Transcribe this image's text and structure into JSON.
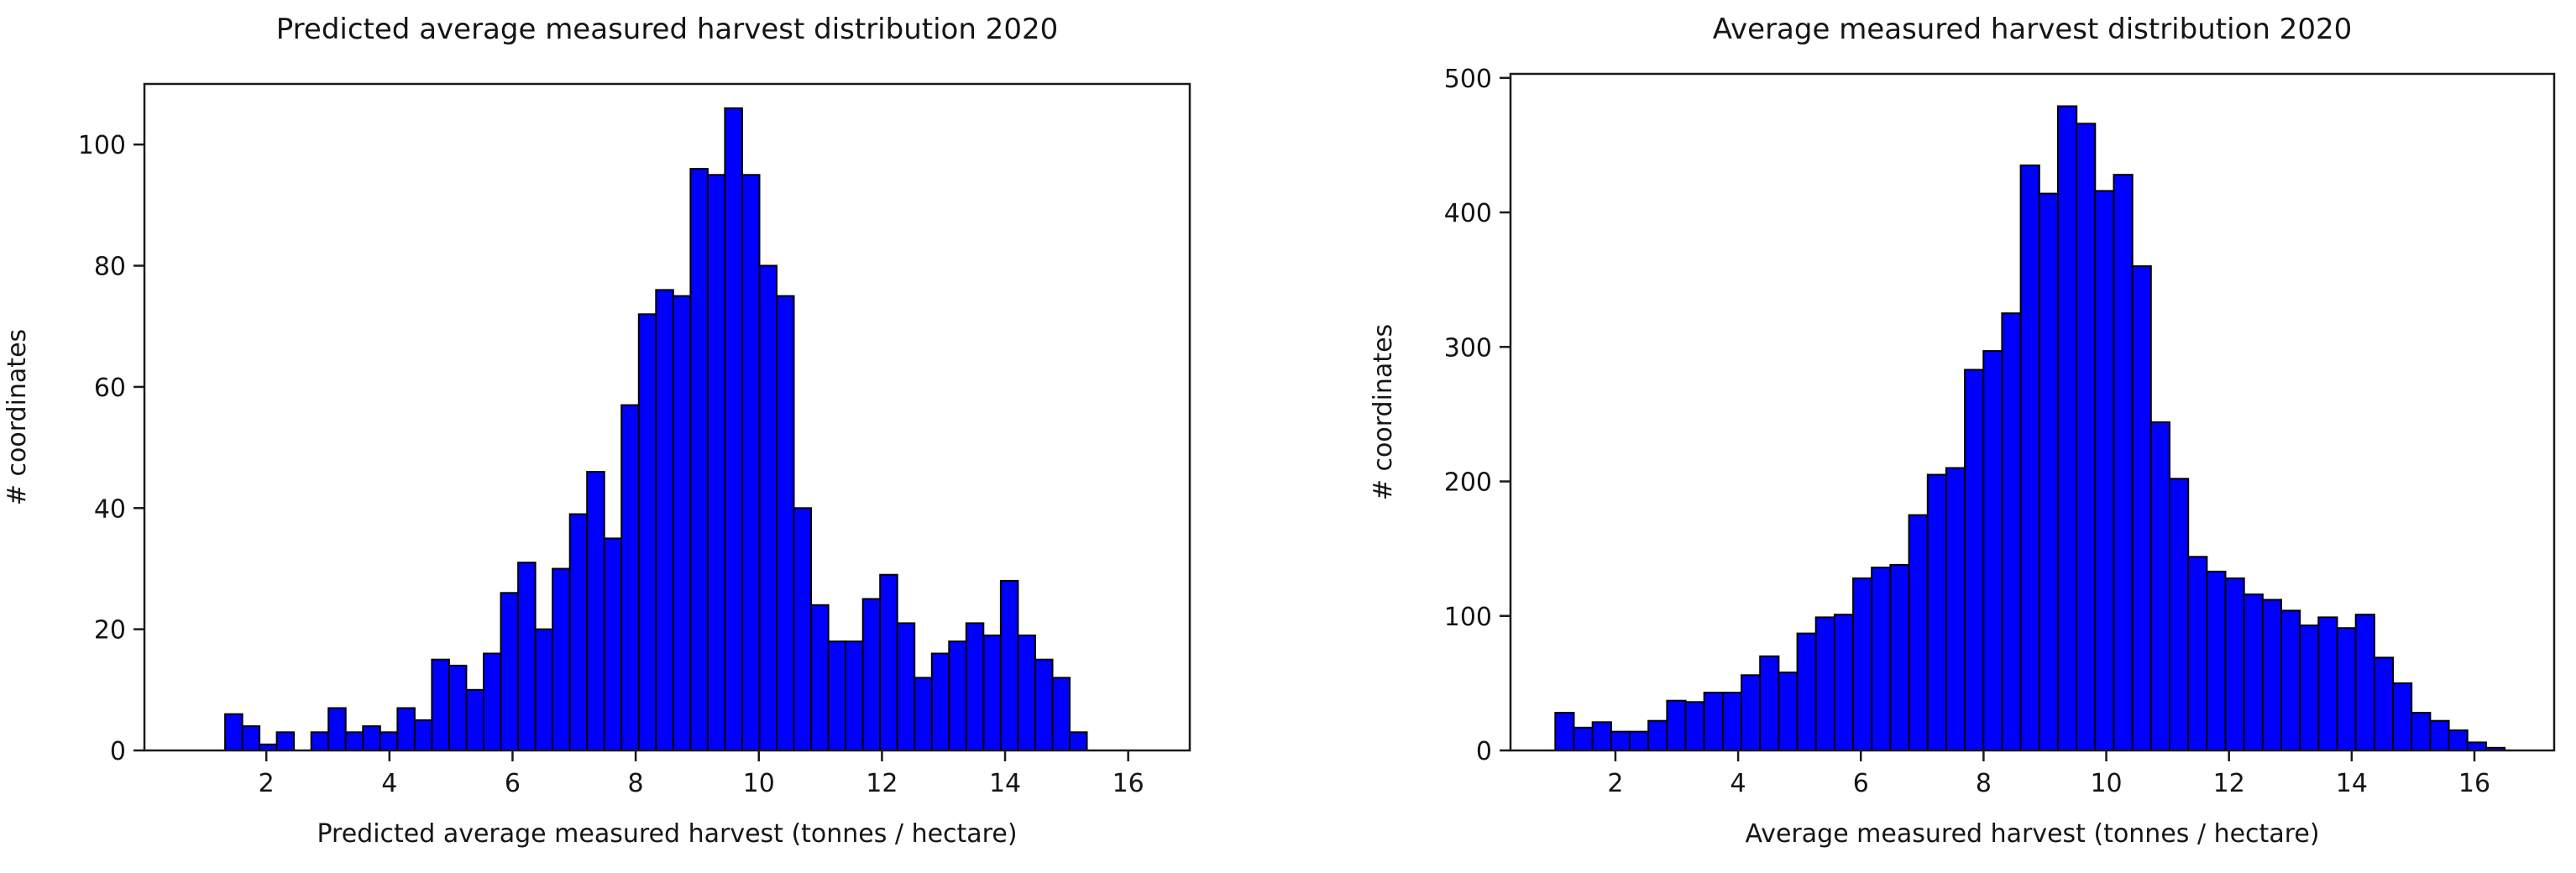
{
  "figure_caption": "Two matplotlib histograms side by side",
  "chart_data": [
    {
      "type": "bar",
      "subtype": "histogram",
      "title": "Predicted average measured harvest distribution 2020",
      "xlabel": "Predicted average measured harvest (tonnes / hectare)",
      "ylabel": "# coordinates",
      "xlim": [
        0.02,
        17.0
      ],
      "ylim": [
        0,
        110
      ],
      "xticks": [
        2,
        4,
        6,
        8,
        10,
        12,
        14,
        16
      ],
      "yticks": [
        0,
        20,
        40,
        60,
        80,
        100
      ],
      "grid": false,
      "legend": null,
      "bin_start": 1.33,
      "bin_width": 0.28,
      "counts": [
        6,
        4,
        1,
        3,
        0,
        3,
        7,
        3,
        4,
        3,
        7,
        5,
        15,
        14,
        10,
        16,
        26,
        31,
        20,
        30,
        39,
        46,
        35,
        57,
        72,
        76,
        75,
        96,
        95,
        106,
        95,
        80,
        75,
        40,
        24,
        18,
        18,
        25,
        29,
        21,
        12,
        16,
        18,
        21,
        19,
        28,
        19,
        15,
        12,
        3
      ],
      "bar_color": "#0000ff",
      "edge_color": "#000000"
    },
    {
      "type": "bar",
      "subtype": "histogram",
      "title": "Average measured harvest distribution 2020",
      "xlabel": "Average measured harvest (tonnes / hectare)",
      "ylabel": "# coordinates",
      "xlim": [
        0.29,
        17.3
      ],
      "ylim": [
        0,
        503
      ],
      "xticks": [
        2,
        4,
        6,
        8,
        10,
        12,
        14,
        16
      ],
      "yticks": [
        0,
        100,
        200,
        300,
        400,
        500
      ],
      "grid": false,
      "legend": null,
      "bin_start": 1.02,
      "bin_width": 0.3034,
      "counts": [
        28,
        17,
        21,
        14,
        14,
        22,
        37,
        36,
        43,
        43,
        56,
        70,
        58,
        87,
        99,
        101,
        128,
        136,
        138,
        175,
        205,
        210,
        283,
        297,
        325,
        435,
        414,
        479,
        466,
        416,
        428,
        360,
        244,
        202,
        144,
        133,
        128,
        116,
        112,
        104,
        93,
        99,
        91,
        101,
        69,
        50,
        28,
        22,
        15,
        6,
        2
      ],
      "bar_color": "#0000ff",
      "edge_color": "#000000"
    }
  ]
}
